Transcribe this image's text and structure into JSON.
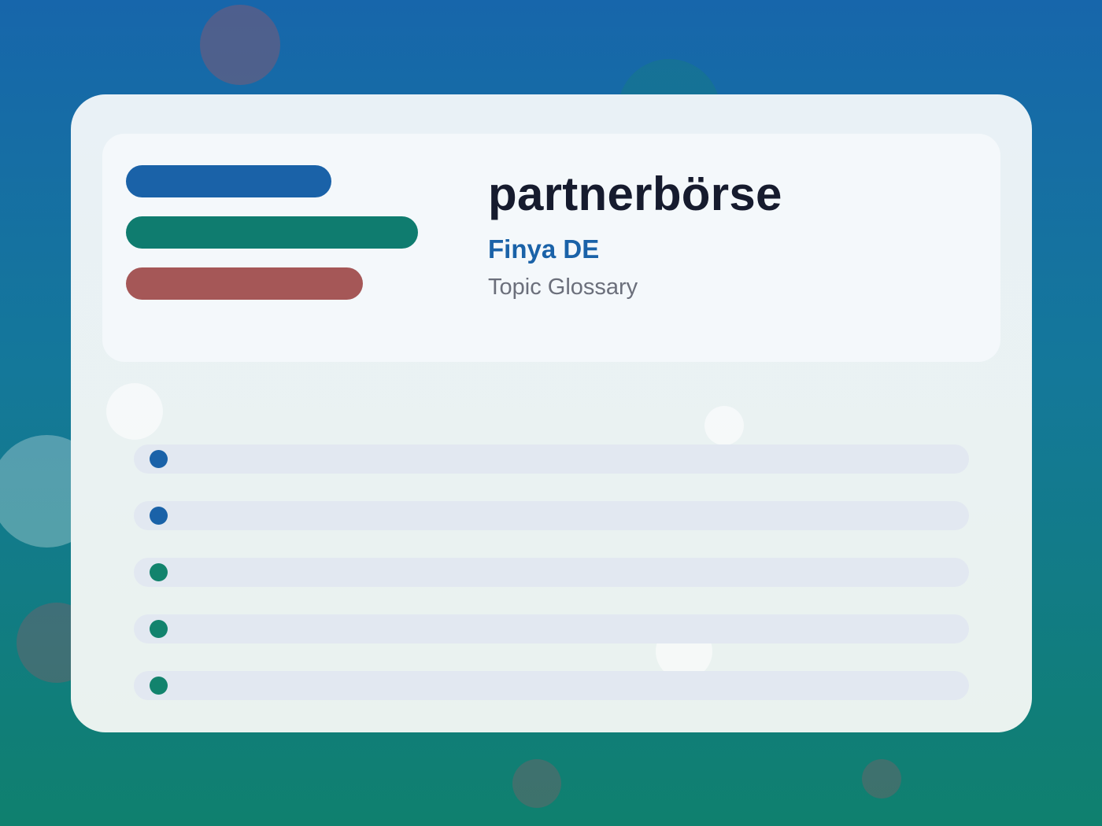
{
  "colors": {
    "primary_blue": "#1a62a8",
    "teal": "#0f7c6f",
    "rose": "#a55757",
    "item_track": "#e2e8f1",
    "dot_green": "#12836d"
  },
  "header": {
    "title": "partnerbörse",
    "subtitle": "Finya DE",
    "caption": "Topic Glossary"
  },
  "accent_bars": [
    {
      "color": "#1a62a8"
    },
    {
      "color": "#0f7c6f"
    },
    {
      "color": "#a55757"
    }
  ],
  "items": [
    {
      "dot_color": "#1a62a8"
    },
    {
      "dot_color": "#1a62a8"
    },
    {
      "dot_color": "#12836d"
    },
    {
      "dot_color": "#12836d"
    },
    {
      "dot_color": "#12836d"
    }
  ]
}
